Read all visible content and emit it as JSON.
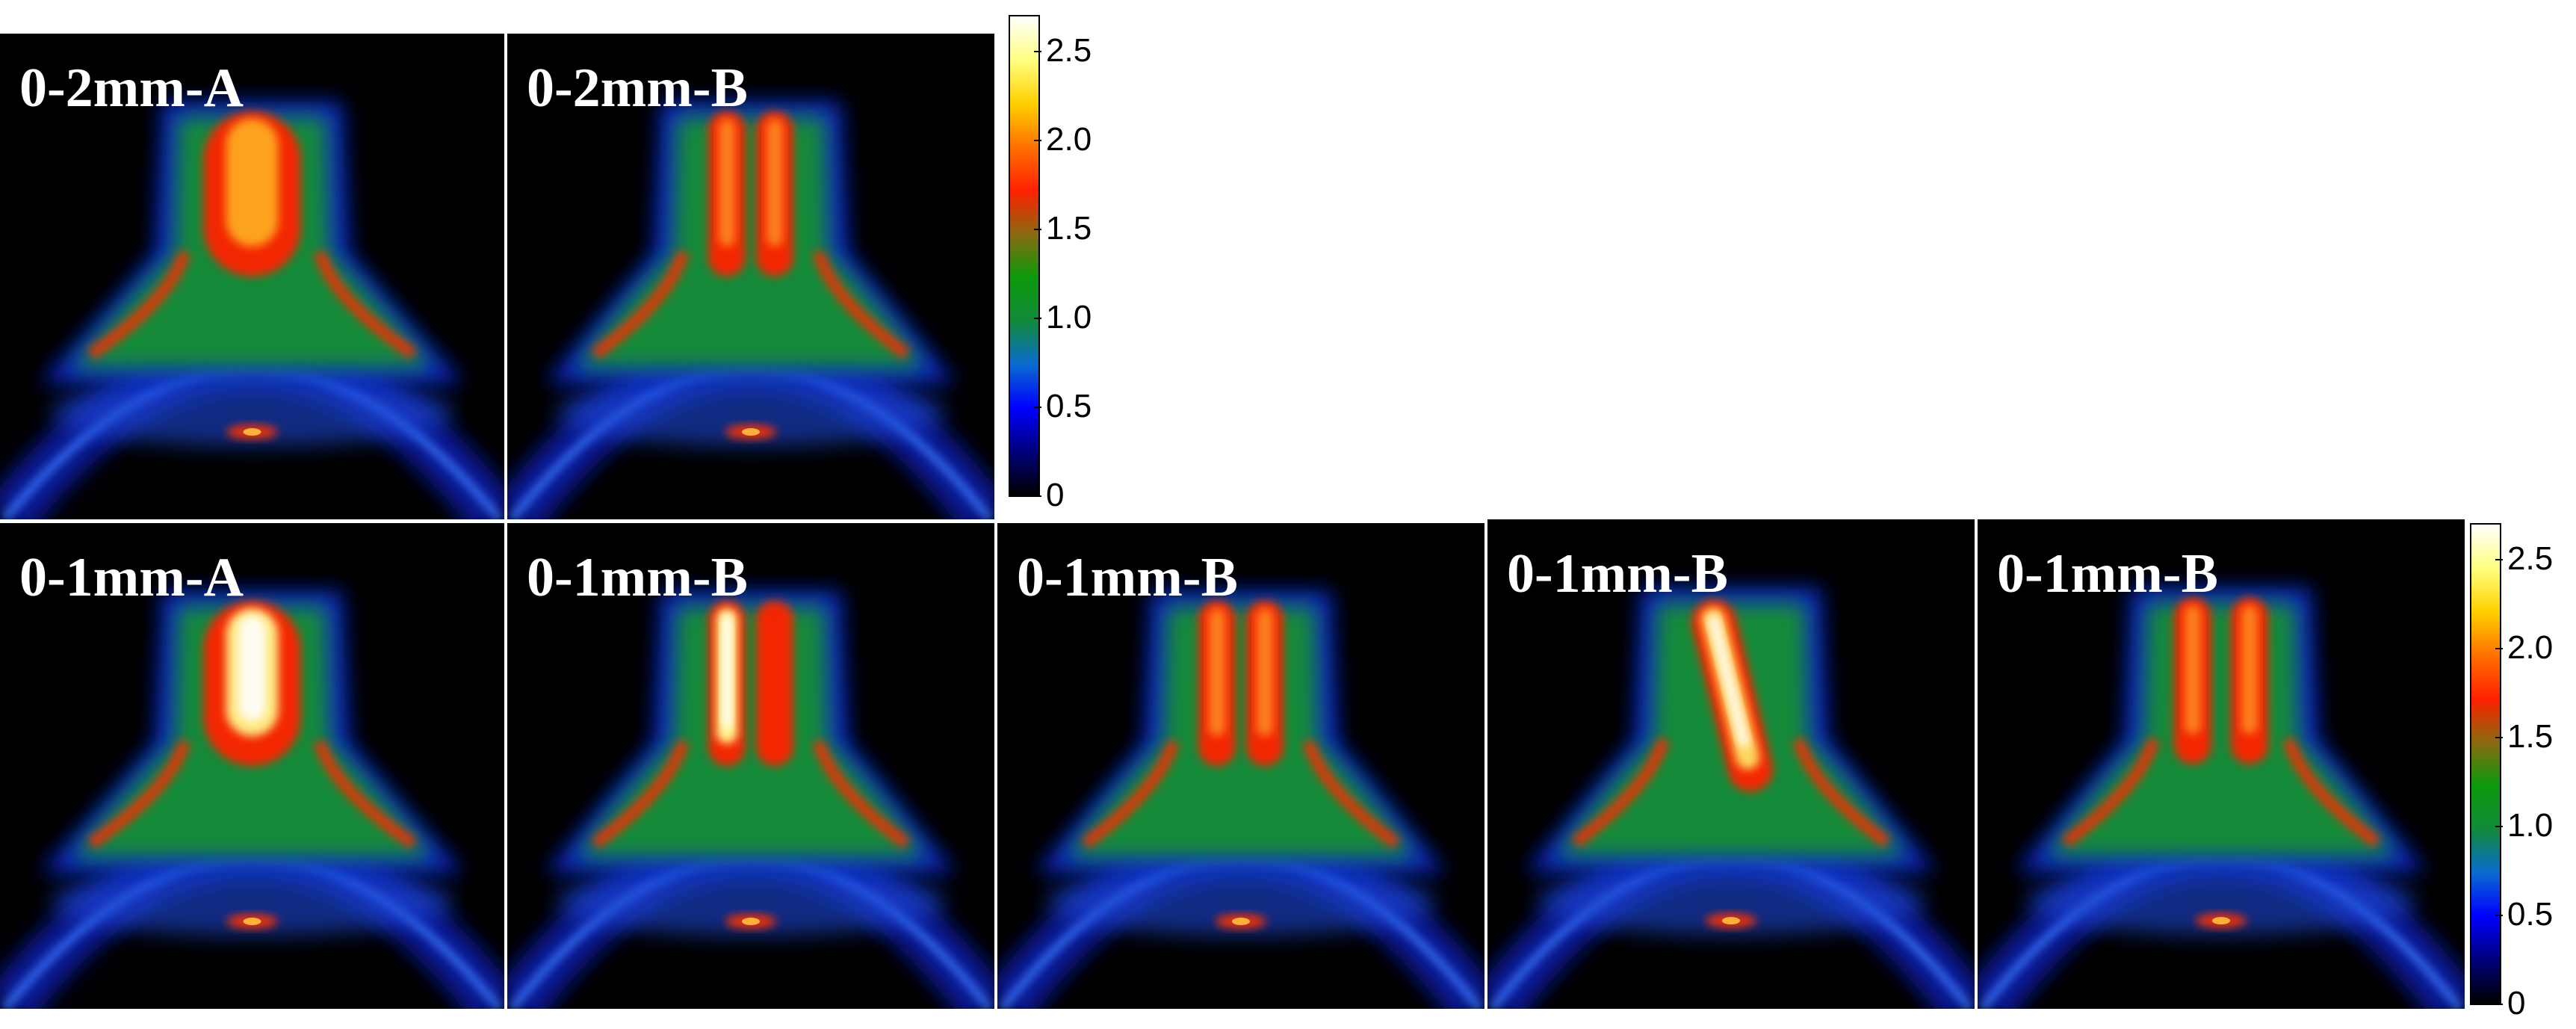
{
  "panels_top": [
    {
      "label": "0-2mm-A",
      "variant": "single"
    },
    {
      "label": "0-2mm-B",
      "variant": "double"
    }
  ],
  "panels_bottom": [
    {
      "label": "0-1mm-A",
      "variant": "single-bright"
    },
    {
      "label": "0-1mm-B",
      "variant": "double-bright"
    },
    {
      "label": "0-1mm-B",
      "variant": "double"
    },
    {
      "label": "0-1mm-B",
      "variant": "tilted"
    },
    {
      "label": "0-1mm-B",
      "variant": "double-narrow"
    }
  ],
  "colorbar": {
    "ticks": [
      "2.5",
      "2.0",
      "1.5",
      "1.0",
      "0.5",
      "0"
    ],
    "min": 0,
    "max": 2.7,
    "colors": [
      "#000000",
      "#00007a",
      "#0000ff",
      "#0a6bd0",
      "#118a3a",
      "#0c9a0c",
      "#8a6a10",
      "#ff2000",
      "#ff7000",
      "#ffd000",
      "#ffff80",
      "#ffffff"
    ]
  }
}
